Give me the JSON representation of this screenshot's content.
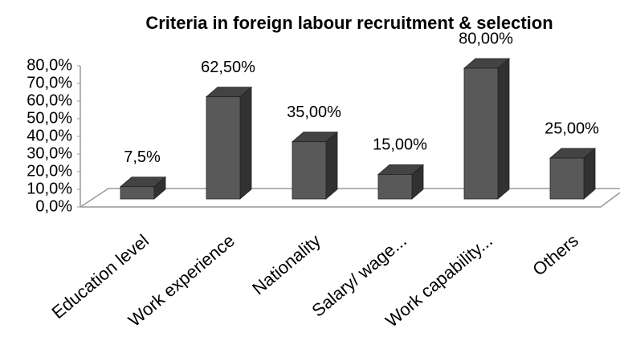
{
  "chart_data": {
    "type": "bar3d",
    "title": "Criteria in foreign labour recruitment & selection",
    "categories": [
      "Education level",
      "Work experience",
      "Nationality",
      "Salary/ wage...",
      "Work capability...",
      "Others"
    ],
    "values": [
      7.5,
      62.5,
      35,
      15,
      80,
      25
    ],
    "value_labels": [
      "7,5%",
      "62,50%",
      "35,00%",
      "15,00%",
      "80,00%",
      "25,00%"
    ],
    "color": "#595959",
    "ylim": [
      0,
      80
    ],
    "yticks": [
      {
        "value": 0,
        "label": "0,0%"
      },
      {
        "value": 10,
        "label": "10,0%"
      },
      {
        "value": 20,
        "label": "20,0%"
      },
      {
        "value": 30,
        "label": "30,0%"
      },
      {
        "value": 40,
        "label": "40,0%"
      },
      {
        "value": 50,
        "label": "50,0%"
      },
      {
        "value": 60,
        "label": "60,0%"
      },
      {
        "value": 70,
        "label": "70,0%"
      },
      {
        "value": 80,
        "label": "80,0%"
      }
    ]
  }
}
